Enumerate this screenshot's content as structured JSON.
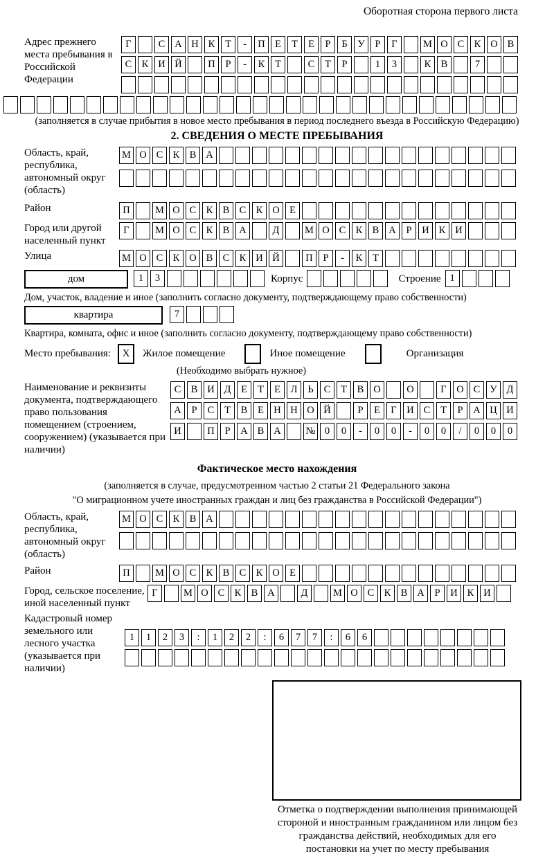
{
  "page_note": "Оборотная сторона первого листа",
  "prev_address": {
    "label": "Адрес прежнего места пребывания в Российской Федерации",
    "row1": [
      "Г",
      "",
      "С",
      "А",
      "Н",
      "К",
      "Т",
      "-",
      "П",
      "Е",
      "Т",
      "Е",
      "Р",
      "Б",
      "У",
      "Р",
      "Г",
      "",
      "М",
      "О",
      "С",
      "К",
      "О",
      "В"
    ],
    "row2": [
      "С",
      "К",
      "И",
      "Й",
      "",
      "П",
      "Р",
      "-",
      "К",
      "Т",
      "",
      "С",
      "Т",
      "Р",
      "",
      "1",
      "3",
      "",
      "К",
      "В",
      "",
      "7",
      "",
      ""
    ],
    "row3": [
      "",
      "",
      "",
      "",
      "",
      "",
      "",
      "",
      "",
      "",
      "",
      "",
      "",
      "",
      "",
      "",
      "",
      "",
      "",
      "",
      "",
      "",
      "",
      ""
    ],
    "row4": [
      "",
      "",
      "",
      "",
      "",
      "",
      "",
      "",
      "",
      "",
      "",
      "",
      "",
      "",
      "",
      "",
      "",
      "",
      "",
      "",
      "",
      "",
      "",
      "",
      "",
      "",
      "",
      "",
      "",
      "",
      ""
    ],
    "note": "(заполняется в случае прибытия в новое место пребывания в период последнего въезда в Российскую Федерацию)"
  },
  "section2": {
    "title": "2. СВЕДЕНИЯ О МЕСТЕ ПРЕБЫВАНИЯ",
    "region_label": "Область, край, республика, автономный округ (область)",
    "region_row1": [
      "М",
      "О",
      "С",
      "К",
      "В",
      "А",
      "",
      "",
      "",
      "",
      "",
      "",
      "",
      "",
      "",
      "",
      "",
      "",
      "",
      "",
      "",
      "",
      "",
      ""
    ],
    "region_row2": [
      "",
      "",
      "",
      "",
      "",
      "",
      "",
      "",
      "",
      "",
      "",
      "",
      "",
      "",
      "",
      "",
      "",
      "",
      "",
      "",
      "",
      "",
      "",
      ""
    ],
    "district_label": "Район",
    "district_row": [
      "П",
      "",
      "М",
      "О",
      "С",
      "К",
      "В",
      "С",
      "К",
      "О",
      "Е",
      "",
      "",
      "",
      "",
      "",
      "",
      "",
      "",
      "",
      "",
      "",
      "",
      ""
    ],
    "city_label": "Город или другой населенный пункт",
    "city_row": [
      "Г",
      "",
      "М",
      "О",
      "С",
      "К",
      "В",
      "А",
      "",
      "Д",
      "",
      "М",
      "О",
      "С",
      "К",
      "В",
      "А",
      "Р",
      "И",
      "К",
      "И",
      "",
      "",
      ""
    ],
    "street_label": "Улица",
    "street_row": [
      "М",
      "О",
      "С",
      "К",
      "О",
      "В",
      "С",
      "К",
      "И",
      "Й",
      "",
      "П",
      "Р",
      "-",
      "К",
      "Т",
      "",
      "",
      "",
      "",
      "",
      "",
      "",
      ""
    ],
    "house_box_label": "дом",
    "house_cells": [
      "1",
      "3",
      "",
      "",
      "",
      "",
      "",
      ""
    ],
    "korpus_label": "Корпус",
    "korpus_cells": [
      "",
      "",
      "",
      "",
      ""
    ],
    "stroenie_label": "Строение",
    "stroenie_cells": [
      "1",
      "",
      "",
      ""
    ],
    "house_note": "Дом, участок, владение и иное (заполнить согласно документу, подтверждающему право собственности)",
    "apartment_box_label": "квартира",
    "apartment_cells": [
      "7",
      "",
      "",
      ""
    ],
    "apartment_note": "Квартира, комната, офис и иное (заполнить согласно документу, подтверждающему право собственности)",
    "stay_label": "Место пребывания:",
    "stay_options": [
      {
        "label": "Жилое помещение",
        "mark": "X"
      },
      {
        "label": "Иное помещение",
        "mark": ""
      },
      {
        "label": "Организация",
        "mark": ""
      }
    ],
    "stay_note": "(Необходимо выбрать нужное)",
    "doc_label": "Наименование и реквизиты документа, подтверждающего право пользования помещением (строением, сооружением) (указывается при наличии)",
    "doc_row1": [
      "С",
      "В",
      "И",
      "Д",
      "Е",
      "Т",
      "Е",
      "Л",
      "Ь",
      "С",
      "Т",
      "В",
      "О",
      "",
      "О",
      "",
      "Г",
      "О",
      "С",
      "У",
      "Д"
    ],
    "doc_row2": [
      "А",
      "Р",
      "С",
      "Т",
      "В",
      "Е",
      "Н",
      "Н",
      "О",
      "Й",
      "",
      "Р",
      "Е",
      "Г",
      "И",
      "С",
      "Т",
      "Р",
      "А",
      "Ц",
      "И"
    ],
    "doc_row3": [
      "И",
      "",
      "П",
      "Р",
      "А",
      "В",
      "А",
      "",
      "№",
      "0",
      "0",
      "-",
      "0",
      "0",
      "-",
      "0",
      "0",
      "/",
      "0",
      "0",
      "0"
    ]
  },
  "actual_location": {
    "title": "Фактическое место нахождения",
    "note_line1": "(заполняется в случае, предусмотренном частью 2 статьи 21 Федерального закона",
    "note_line2": "\"О миграционном учете иностранных граждан и лиц без гражданства в Российской Федерации\")",
    "region_label": "Область, край, республика, автономный округ (область)",
    "region_row1": [
      "М",
      "О",
      "С",
      "К",
      "В",
      "А",
      "",
      "",
      "",
      "",
      "",
      "",
      "",
      "",
      "",
      "",
      "",
      "",
      "",
      "",
      "",
      "",
      "",
      ""
    ],
    "region_row2": [
      "",
      "",
      "",
      "",
      "",
      "",
      "",
      "",
      "",
      "",
      "",
      "",
      "",
      "",
      "",
      "",
      "",
      "",
      "",
      "",
      "",
      "",
      "",
      ""
    ],
    "district_label": "Район",
    "district_row": [
      "П",
      "",
      "М",
      "О",
      "С",
      "К",
      "В",
      "С",
      "К",
      "О",
      "Е",
      "",
      "",
      "",
      "",
      "",
      "",
      "",
      "",
      "",
      "",
      "",
      "",
      ""
    ],
    "city_label": "Город, сельское поселение, иной населенный пункт",
    "city_row": [
      "Г",
      "",
      "М",
      "О",
      "С",
      "К",
      "В",
      "А",
      "",
      "Д",
      "",
      "М",
      "О",
      "С",
      "К",
      "В",
      "А",
      "Р",
      "И",
      "К",
      "И",
      ""
    ],
    "cadastral_label": "Кадастровый номер земельного или лесного участка (указывается при наличии)",
    "cadastral_row1": [
      "1",
      "1",
      "2",
      "3",
      ":",
      "1",
      "2",
      "2",
      ":",
      "6",
      "7",
      "7",
      ":",
      "6",
      "6",
      "",
      "",
      "",
      "",
      "",
      "",
      "",
      ""
    ],
    "cadastral_row2": [
      "",
      "",
      "",
      "",
      "",
      "",
      "",
      "",
      "",
      "",
      "",
      "",
      "",
      "",
      "",
      "",
      "",
      "",
      "",
      "",
      "",
      "",
      ""
    ]
  },
  "stamp": {
    "caption": "Отметка о подтверждении выполнения принимающей стороной и иностранным гражданином или лицом без гражданства действий, необходимых для его постановки на учет по месту пребывания"
  }
}
